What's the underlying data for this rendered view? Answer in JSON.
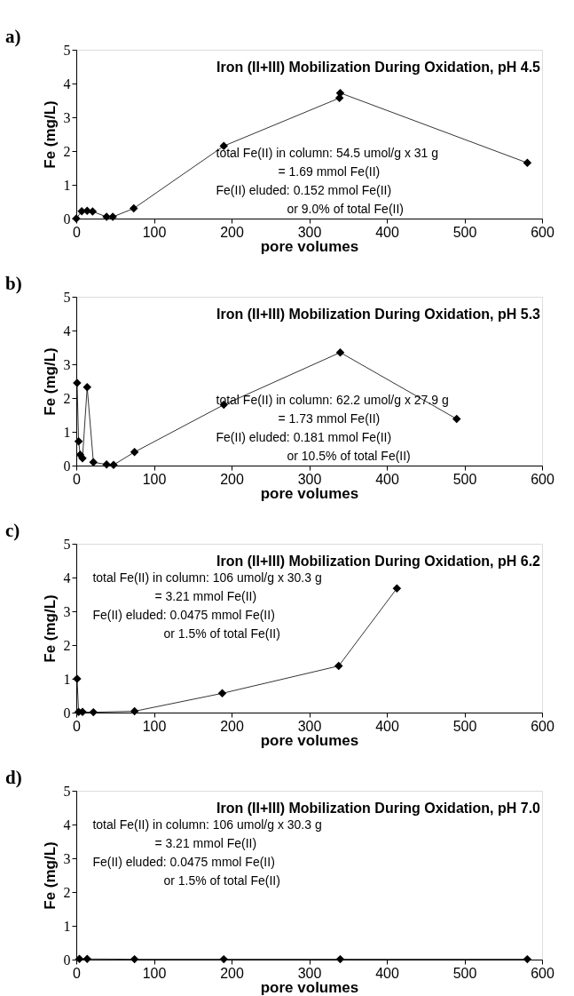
{
  "chart_data": [
    {
      "type": "line",
      "title": "Iron (II+III) Mobilization During Oxidation, pH 4.5",
      "xlabel": "pore volumes",
      "ylabel": "Fe (mg/L)",
      "annotations": [
        "a)",
        "total Fe(II) in column:  54.5 umol/g x 31 g",
        "= 1.69 mmol Fe(II)",
        "Fe(II) eluded:      0.152 mmol Fe(II)",
        "or 9.0% of total Fe(II)"
      ],
      "series": [
        {
          "color": "#000000",
          "x": [
            0,
            7,
            14,
            21,
            39,
            47,
            74,
            190,
            339,
            340,
            581
          ],
          "values": [
            0,
            0.22,
            0.23,
            0.21,
            0.05,
            0.05,
            0.3,
            2.15,
            3.57,
            3.72,
            1.65
          ]
        }
      ],
      "xlim": [
        0,
        600
      ],
      "ylim": [
        0,
        5
      ],
      "xticks": [
        0,
        100,
        200,
        300,
        400,
        500,
        600
      ],
      "yticks": [
        0,
        1,
        2,
        3,
        4,
        5
      ],
      "grid": false,
      "marker": "diamond",
      "line_style": "solid"
    },
    {
      "type": "line",
      "title": "Iron (II+III) Mobilization During Oxidation, pH 5.3",
      "xlabel": "pore volumes",
      "ylabel": "Fe (mg/L)",
      "annotations": [
        "b)",
        "total Fe(II) in column:  62.2 umol/g x 27.9 g",
        "= 1.73 mmol Fe(II)",
        "Fe(II) eluded:      0.181 mmol Fe(II)",
        "or 10.5% of total Fe(II)"
      ],
      "series": [
        {
          "color": "#000000",
          "x": [
            1,
            3,
            5,
            8,
            14,
            22,
            39,
            48,
            75,
            190,
            340,
            490
          ],
          "values": [
            2.45,
            0.72,
            0.32,
            0.22,
            2.32,
            0.1,
            0.03,
            0.02,
            0.4,
            1.8,
            3.35,
            1.38
          ]
        }
      ],
      "xlim": [
        0,
        600
      ],
      "ylim": [
        0,
        5
      ],
      "xticks": [
        0,
        100,
        200,
        300,
        400,
        500,
        600
      ],
      "yticks": [
        0,
        1,
        2,
        3,
        4,
        5
      ],
      "grid": false,
      "marker": "diamond",
      "line_style": "solid"
    },
    {
      "type": "line",
      "title": "Iron (II+III) Mobilization During Oxidation, pH 6.2",
      "xlabel": "pore volumes",
      "ylabel": "Fe (mg/L)",
      "annotations": [
        "c)",
        "total Fe(II) in column:  106 umol/g x 30.3 g",
        "= 3.21 mmol Fe(II)",
        "Fe(II) eluded:      0.0475 mmol Fe(II)",
        "or 1.5% of total Fe(II)"
      ],
      "series": [
        {
          "color": "#000000",
          "x": [
            1,
            3,
            8,
            22,
            75,
            188,
            338,
            413
          ],
          "values": [
            1.0,
            0.02,
            0.02,
            0.01,
            0.04,
            0.57,
            1.38,
            3.68
          ]
        }
      ],
      "xlim": [
        0,
        600
      ],
      "ylim": [
        0,
        5
      ],
      "xticks": [
        0,
        100,
        200,
        300,
        400,
        500,
        600
      ],
      "yticks": [
        0,
        1,
        2,
        3,
        4,
        5
      ],
      "grid": false,
      "marker": "diamond",
      "line_style": "solid"
    },
    {
      "type": "line",
      "title": "Iron (II+III) Mobilization During Oxidation, pH 7.0",
      "xlabel": "pore volumes",
      "ylabel": "Fe (mg/L)",
      "annotations": [
        "d)",
        "total Fe(II) in column:  106 umol/g x 30.3 g",
        "= 3.21 mmol Fe(II)",
        "Fe(II) eluded:      0.0475 mmol Fe(II)",
        "or 1.5% of total Fe(II)"
      ],
      "series": [
        {
          "color": "#000000",
          "x": [
            4,
            14,
            75,
            190,
            340,
            581
          ],
          "values": [
            0.02,
            0.02,
            0.01,
            0.01,
            0.01,
            0.01
          ]
        }
      ],
      "xlim": [
        0,
        600
      ],
      "ylim": [
        0,
        5
      ],
      "xticks": [
        0,
        100,
        200,
        300,
        400,
        500,
        600
      ],
      "yticks": [
        0,
        1,
        2,
        3,
        4,
        5
      ],
      "grid": false,
      "marker": "diamond",
      "line_style": "solid"
    }
  ]
}
